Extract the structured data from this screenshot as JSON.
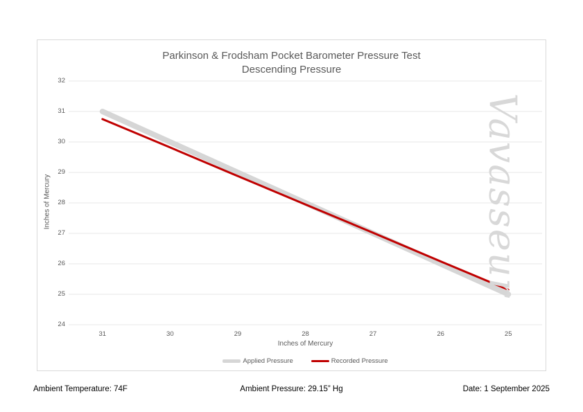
{
  "chart_data": {
    "type": "line",
    "title": "Parkinson & Frodsham Pocket Barometer Pressure Test",
    "subtitle": "Descending Pressure",
    "categories": [
      "31",
      "30",
      "29",
      "28",
      "27",
      "26",
      "25"
    ],
    "xlabel": "Inches of Mercury",
    "ylabel": "Inches of Mercury",
    "ylim": [
      24,
      32
    ],
    "yticks": [
      32,
      31,
      30,
      29,
      28,
      27,
      26,
      25,
      24
    ],
    "x_axis_reversed": true,
    "grid": true,
    "legend_position": "bottom",
    "series": [
      {
        "name": "Applied Pressure",
        "color": "#d6d6d6",
        "line_width": 8,
        "values": [
          31,
          30,
          29,
          28,
          27,
          26,
          25
        ]
      },
      {
        "name": "Recorded Pressure",
        "color": "#c00000",
        "line_width": 3,
        "values": [
          30.75,
          29.82,
          28.88,
          27.95,
          27.02,
          26.08,
          25.15
        ]
      }
    ]
  },
  "colors": {
    "axis_text": "#595959",
    "title_text": "#595959",
    "gridline": "#e7e7e7",
    "chart_border": "#d9d9d9",
    "applied_line": "#d6d6d6",
    "recorded_line": "#c00000",
    "watermark": "#d8d8d8",
    "footer_text": "#000000"
  },
  "watermark": {
    "text": "Vavasseur"
  },
  "footer": {
    "ambient_temperature": "Ambient Temperature: 74F",
    "ambient_pressure": "Ambient Pressure: 29.15” Hg",
    "date": "Date: 1 September 2025"
  }
}
